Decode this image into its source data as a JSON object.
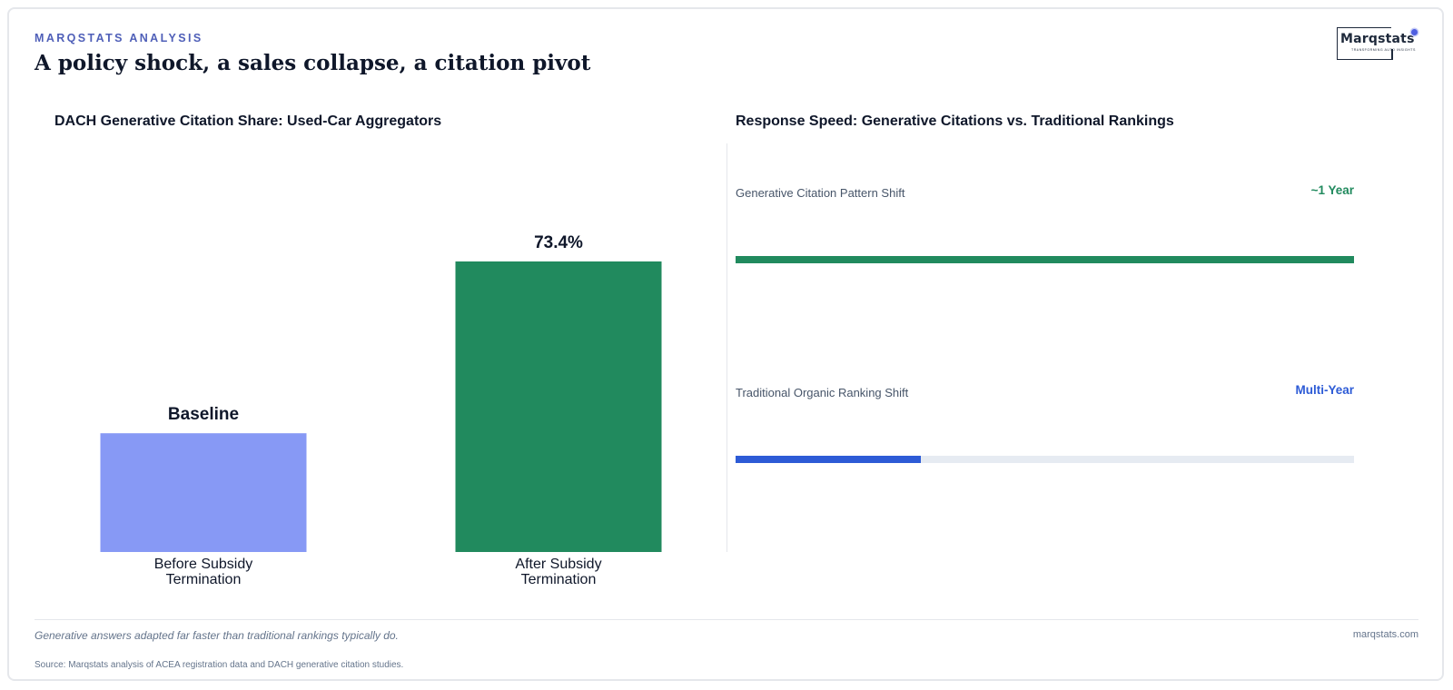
{
  "header": {
    "kicker": "MARQSTATS ANALYSIS",
    "headline": "A policy shock, a sales collapse, a citation pivot"
  },
  "logo": {
    "wordmark": "Marqstats",
    "tagline": "TRANSFORMING AUTO INSIGHTS"
  },
  "colors": {
    "accent": "#4f5fb8",
    "before_bar": "#8799f5",
    "after_bar": "#218a5e",
    "generative": "#218a5e",
    "traditional": "#2d5bd6",
    "track": "#e6ebf2"
  },
  "chart_data": [
    {
      "type": "bar",
      "title": "DACH Generative Citation Share: Used-Car Aggregators",
      "categories": [
        "Before Subsidy Termination",
        "After Subsidy Termination"
      ],
      "values": [
        30.0,
        73.4
      ],
      "data_labels": [
        "Baseline",
        "73.4%"
      ],
      "xlabel": "",
      "ylabel": "",
      "ylim": [
        0,
        100
      ],
      "grid": false,
      "legend": "none"
    },
    {
      "type": "bar",
      "title": "Response Speed: Generative Citations vs. Traditional Rankings",
      "orientation": "horizontal",
      "categories": [
        "Generative Citation Pattern Shift",
        "Traditional Organic Ranking Shift"
      ],
      "values": [
        1.0,
        0.3
      ],
      "data_labels": [
        "~1 Year",
        "Multi-Year"
      ],
      "xlim": [
        0,
        1
      ],
      "grid": false,
      "legend": "none"
    }
  ],
  "footer": {
    "note": "Generative answers adapted far faster than traditional rankings typically do.",
    "site": "marqstats.com",
    "source": "Source: Marqstats analysis of ACEA registration data and DACH generative citation studies."
  }
}
